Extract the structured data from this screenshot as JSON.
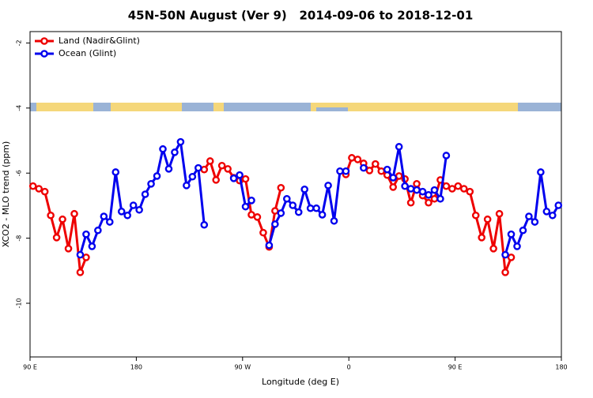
{
  "chart_data": {
    "type": "line",
    "title": "45N-50N August (Ver 9)   2014-09-06 to 2018-12-01",
    "xlabel": "Longitude (deg E)",
    "ylabel": "XCO2 - MLO trend (ppm)",
    "legend": "top-left",
    "xlim": [
      90,
      540
    ],
    "xticks": [
      {
        "value": 90,
        "label": "90 E"
      },
      180,
      {
        "value": 270,
        "label": "90 W"
      },
      {
        "value": 360,
        "label": "0"
      },
      {
        "value": 450,
        "label": "90 E"
      },
      {
        "value": 540,
        "label": "180"
      }
    ],
    "ylim": [
      -11.65,
      -1.65
    ],
    "yticks": [
      -2,
      -4,
      -6,
      -8,
      -10
    ],
    "x": [
      92.5,
      97.5,
      102.5,
      107.5,
      112.5,
      117.5,
      122.5,
      127.5,
      132.5,
      137.5,
      142.5,
      147.5,
      152.5,
      157.5,
      162.5,
      167.5,
      172.5,
      177.5,
      182.5,
      187.5,
      192.5,
      197.5,
      202.5,
      207.5,
      212.5,
      217.5,
      222.5,
      227.5,
      232.5,
      237.5,
      242.5,
      247.5,
      252.5,
      257.5,
      262.5,
      267.5,
      272.5,
      277.5,
      282.5,
      287.5,
      292.5,
      297.5,
      302.5,
      307.5,
      312.5,
      317.5,
      322.5,
      327.5,
      332.5,
      337.5,
      342.5,
      347.5,
      352.5,
      357.5,
      362.5,
      367.5,
      372.5,
      377.5,
      382.5,
      387.5,
      392.5,
      397.5,
      402.5,
      407.5,
      412.5,
      417.5,
      422.5,
      427.5,
      432.5,
      437.5,
      442.5,
      447.5,
      452.5,
      457.5,
      462.5,
      467.5,
      472.5,
      477.5,
      482.5,
      487.5,
      492.5,
      497.5,
      502.5,
      507.5,
      512.5,
      517.5,
      522.5,
      527.5,
      532.5,
      537.5
    ],
    "series": [
      {
        "name": "Land (Nadir&Glint)",
        "color": "#ee0000",
        "values": [
          -6.4,
          -6.48,
          -6.57,
          -7.3,
          -7.98,
          -7.42,
          -8.32,
          -7.25,
          -9.05,
          -8.59,
          null,
          null,
          null,
          null,
          null,
          null,
          null,
          null,
          null,
          null,
          null,
          null,
          null,
          null,
          null,
          null,
          null,
          null,
          null,
          -5.89,
          -5.63,
          -6.21,
          -5.77,
          -5.87,
          -6.14,
          -6.23,
          -6.18,
          -7.28,
          -7.35,
          -7.83,
          -8.27,
          -7.16,
          -6.45,
          null,
          null,
          null,
          null,
          null,
          null,
          null,
          null,
          null,
          null,
          -6.04,
          -5.53,
          -5.58,
          -5.7,
          -5.92,
          -5.72,
          -5.94,
          -6.06,
          -6.43,
          -6.09,
          -6.18,
          -6.91,
          -6.33,
          -6.69,
          -6.91,
          -6.79,
          -6.21,
          -6.4,
          -6.48,
          -6.4,
          -6.48,
          -6.57,
          -7.3,
          -7.98,
          -7.42,
          -8.32,
          -7.25,
          -9.05,
          -8.59,
          null,
          null,
          null,
          null,
          null,
          null,
          null,
          null
        ]
      },
      {
        "name": "Ocean (Glint)",
        "color": "#0000ee",
        "values": [
          null,
          null,
          null,
          null,
          null,
          null,
          null,
          null,
          -8.51,
          -7.88,
          -8.25,
          -7.76,
          -7.33,
          -7.5,
          -5.97,
          -7.18,
          -7.3,
          -6.99,
          -7.13,
          -6.65,
          -6.33,
          -6.09,
          -5.26,
          -5.87,
          -5.36,
          -5.04,
          -6.38,
          -6.11,
          -5.84,
          -7.59,
          null,
          null,
          null,
          null,
          -6.16,
          -6.06,
          -7.03,
          -6.84,
          null,
          null,
          -8.22,
          -7.57,
          -7.23,
          -6.79,
          -6.99,
          -7.2,
          -6.5,
          -7.08,
          -7.08,
          -7.28,
          -6.38,
          -7.47,
          -5.94,
          -5.94,
          null,
          null,
          -5.84,
          null,
          null,
          null,
          -5.89,
          -6.14,
          -5.19,
          -6.4,
          -6.48,
          -6.52,
          -6.57,
          -6.67,
          -6.52,
          -6.79,
          -5.46,
          null,
          null,
          null,
          null,
          null,
          null,
          null,
          null,
          null,
          -8.51,
          -7.88,
          -8.25,
          -7.76,
          -7.33,
          -7.5,
          -5.97,
          -7.18,
          -7.3,
          -6.99
        ]
      }
    ]
  }
}
